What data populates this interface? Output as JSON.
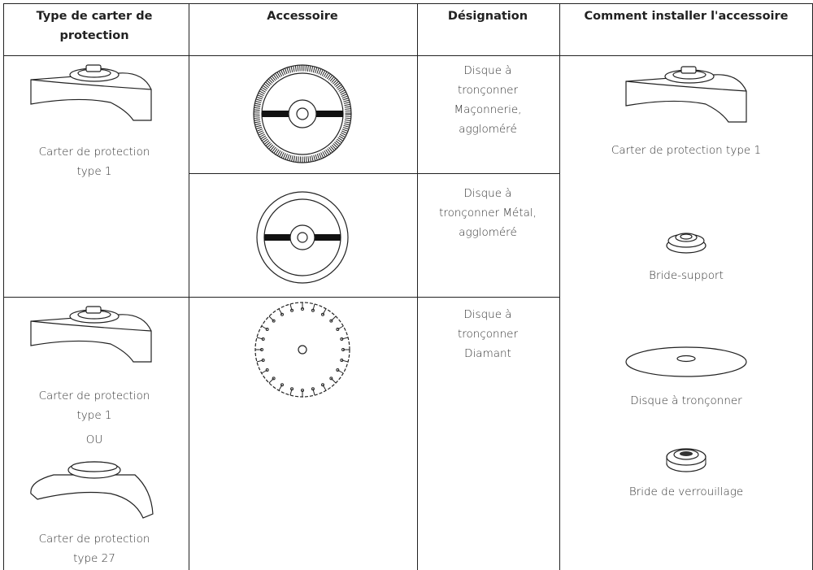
{
  "table": {
    "headers": [
      [
        "Type de carter de",
        "protection"
      ],
      [
        "Accessoire"
      ],
      [
        "Désignation"
      ],
      [
        "Comment installer l'accessoire"
      ]
    ],
    "guard_row_1": [
      "Carter de protection",
      "type 1"
    ],
    "guard_row_3": {
      "first": [
        "Carter de protection",
        "type 1"
      ],
      "separator": "OU",
      "second": [
        "Carter de protection",
        "type 27"
      ]
    },
    "designations": [
      [
        "Disque à",
        "tronçonner",
        "Maçonnerie,",
        "aggloméré"
      ],
      [
        "Disque à",
        "tronçonner Métal,",
        "aggloméré"
      ],
      [
        "Disque à",
        "tronçonner",
        "Diamant"
      ]
    ],
    "installation": [
      "Carter de protection type 1",
      "Bride-support",
      "Disque à tronçonner",
      "Bride de verrouillage"
    ]
  }
}
